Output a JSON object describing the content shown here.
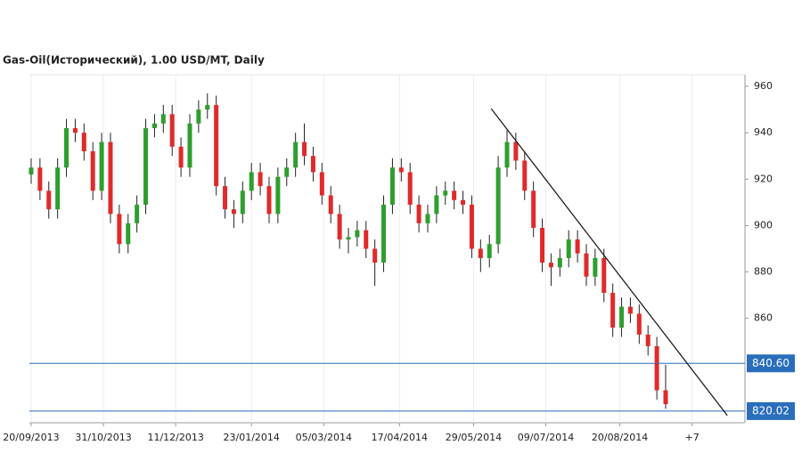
{
  "chart_data": {
    "type": "candlestick",
    "title": "Gas-Oil(Исторический), 1.00 USD/MT, Daily",
    "up_color": "#2e9e2e",
    "down_color": "#e02a2a",
    "level_color": "#2a6ebb",
    "grid": true,
    "x": [
      "2013-09-20",
      "2013-09-25",
      "2013-09-30",
      "2013-10-05",
      "2013-10-10",
      "2013-10-15",
      "2013-10-20",
      "2013-10-25",
      "2013-10-30",
      "2013-11-04",
      "2013-11-09",
      "2013-11-14",
      "2013-11-19",
      "2013-11-24",
      "2013-11-29",
      "2013-12-04",
      "2013-12-09",
      "2013-12-14",
      "2013-12-19",
      "2013-12-24",
      "2013-12-29",
      "2014-01-03",
      "2014-01-08",
      "2014-01-13",
      "2014-01-18",
      "2014-01-23",
      "2014-01-28",
      "2014-02-02",
      "2014-02-07",
      "2014-02-12",
      "2014-02-17",
      "2014-02-22",
      "2014-02-27",
      "2014-03-04",
      "2014-03-09",
      "2014-03-14",
      "2014-03-19",
      "2014-03-24",
      "2014-03-29",
      "2014-04-03",
      "2014-04-08",
      "2014-04-13",
      "2014-04-18",
      "2014-04-23",
      "2014-04-28",
      "2014-05-03",
      "2014-05-08",
      "2014-05-13",
      "2014-05-18",
      "2014-05-23",
      "2014-05-28",
      "2014-06-02",
      "2014-06-07",
      "2014-06-12",
      "2014-06-17",
      "2014-06-22",
      "2014-06-27",
      "2014-07-02",
      "2014-07-07",
      "2014-07-12",
      "2014-07-17",
      "2014-07-22",
      "2014-07-27",
      "2014-08-01",
      "2014-08-06",
      "2014-08-11",
      "2014-08-16",
      "2014-08-21",
      "2014-08-26",
      "2014-08-31",
      "2014-09-05",
      "2014-09-10",
      "2014-09-15"
    ],
    "open": [
      922,
      925,
      915,
      907,
      925,
      942,
      940,
      932,
      915,
      936,
      905,
      892,
      901,
      909,
      942,
      944,
      948,
      934,
      925,
      944,
      950,
      952,
      917,
      907,
      905,
      915,
      923,
      917,
      905,
      921,
      925,
      936,
      930,
      923,
      913,
      905,
      894,
      895,
      898,
      890,
      884,
      909,
      925,
      923,
      909,
      901,
      905,
      913,
      915,
      911,
      909,
      890,
      886,
      892,
      925,
      936,
      928,
      915,
      899,
      884,
      882,
      886,
      894,
      888,
      878,
      886,
      871,
      856,
      865,
      862,
      853,
      848,
      829
    ],
    "high": [
      929,
      929,
      919,
      929,
      946,
      946,
      944,
      936,
      940,
      940,
      909,
      905,
      913,
      946,
      948,
      952,
      952,
      938,
      948,
      954,
      957,
      956,
      921,
      911,
      919,
      927,
      927,
      921,
      925,
      929,
      940,
      944,
      934,
      927,
      917,
      909,
      899,
      902,
      902,
      894,
      913,
      929,
      929,
      927,
      913,
      909,
      917,
      919,
      919,
      915,
      913,
      894,
      896,
      930,
      941,
      940,
      932,
      919,
      903,
      888,
      890,
      898,
      898,
      892,
      890,
      890,
      875,
      869,
      869,
      866,
      857,
      852,
      840
    ],
    "low": [
      918,
      911,
      903,
      903,
      921,
      936,
      928,
      911,
      911,
      901,
      888,
      888,
      897,
      905,
      938,
      940,
      930,
      921,
      921,
      940,
      946,
      913,
      903,
      899,
      901,
      911,
      913,
      901,
      901,
      917,
      921,
      926,
      919,
      909,
      901,
      890,
      888,
      891,
      886,
      874,
      880,
      905,
      919,
      905,
      897,
      897,
      901,
      909,
      907,
      905,
      886,
      880,
      882,
      888,
      921,
      924,
      911,
      895,
      880,
      874,
      878,
      882,
      884,
      874,
      874,
      867,
      852,
      852,
      858,
      849,
      844,
      825,
      821
    ],
    "close": [
      925,
      915,
      907,
      925,
      942,
      940,
      932,
      915,
      936,
      905,
      892,
      901,
      909,
      942,
      944,
      948,
      934,
      925,
      944,
      950,
      952,
      917,
      907,
      905,
      915,
      923,
      917,
      905,
      921,
      925,
      936,
      930,
      923,
      913,
      905,
      894,
      895,
      898,
      890,
      884,
      909,
      925,
      923,
      909,
      901,
      905,
      913,
      915,
      911,
      909,
      890,
      886,
      892,
      925,
      936,
      928,
      915,
      899,
      884,
      882,
      886,
      894,
      888,
      878,
      886,
      871,
      856,
      865,
      862,
      853,
      848,
      829,
      823
    ],
    "xlim": [
      "2013-09-19",
      "2014-10-30"
    ],
    "xticks": [
      {
        "value": "2013-09-20",
        "label": "20/09/2013"
      },
      {
        "value": "2013-10-31",
        "label": "31/10/2013"
      },
      {
        "value": "2013-12-11",
        "label": "11/12/2013"
      },
      {
        "value": "2014-01-23",
        "label": "23/01/2014"
      },
      {
        "value": "2014-03-05",
        "label": "05/03/2014"
      },
      {
        "value": "2014-04-17",
        "label": "17/04/2014"
      },
      {
        "value": "2014-05-29",
        "label": "29/05/2014"
      },
      {
        "value": "2014-07-09",
        "label": "09/07/2014"
      },
      {
        "value": "2014-08-20",
        "label": "20/08/2014"
      },
      {
        "value": "2014-09-30",
        "label": "+7"
      }
    ],
    "ylim": [
      815,
      965
    ],
    "yticks": [
      860,
      880,
      900,
      920,
      940,
      960
    ],
    "levels": [
      {
        "value": 840.6,
        "label": "840.60"
      },
      {
        "value": 820.02,
        "label": "820.02"
      }
    ],
    "trendline": {
      "x": [
        "2014-06-08",
        "2014-10-20"
      ],
      "y": [
        950.4,
        818.1
      ]
    }
  }
}
